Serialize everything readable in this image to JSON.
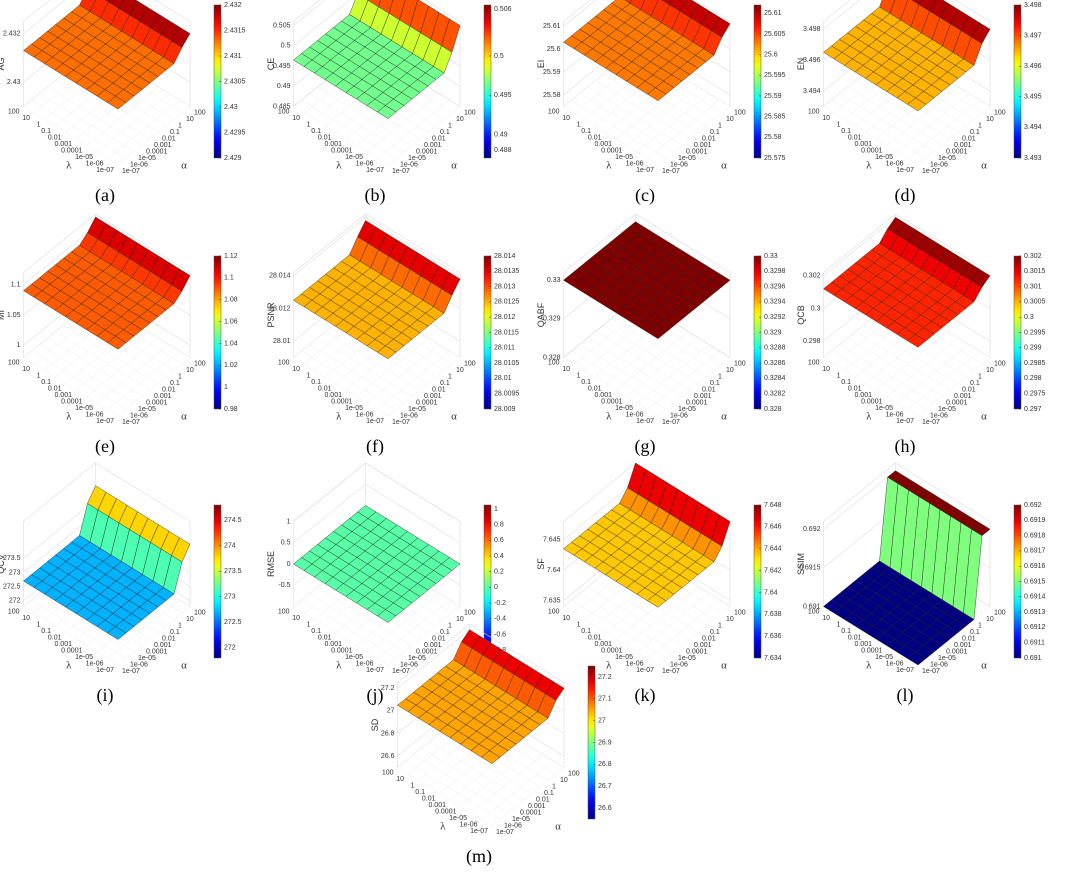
{
  "axes": {
    "lambda_label": "λ",
    "alpha_label": "α",
    "ticks": [
      "100",
      "10",
      "1",
      "0.1",
      "0.01",
      "0.001",
      "0.0001",
      "1e-05",
      "1e-06",
      "1e-07"
    ]
  },
  "colormap": "jet",
  "chart_data": [
    {
      "type": "surface",
      "panel_label": "(a)",
      "zlabel": "AG",
      "zlim": [
        2.429,
        2.4325
      ],
      "zticks": [
        2.43,
        2.432
      ],
      "clim": [
        2.429,
        2.432
      ],
      "cticks": [
        2.429,
        2.4295,
        2.43,
        2.4305,
        2.431,
        2.4315,
        2.432
      ],
      "values": [
        2.4313,
        2.4313,
        2.4313,
        2.4313,
        2.4313,
        2.4313,
        2.4313,
        2.4313,
        2.4317,
        2.432
      ]
    },
    {
      "type": "surface",
      "panel_label": "(b)",
      "zlabel": "CE",
      "zlim": [
        0.485,
        0.506
      ],
      "zticks": [
        0.485,
        0.49,
        0.495,
        0.5,
        0.505
      ],
      "clim": [
        0.487,
        0.5065
      ],
      "cticks": [
        0.488,
        0.49,
        0.495,
        0.5,
        0.506
      ],
      "values": [
        0.4965,
        0.4965,
        0.4965,
        0.4965,
        0.4965,
        0.4965,
        0.4965,
        0.4965,
        0.5,
        0.505
      ]
    },
    {
      "type": "surface",
      "panel_label": "(c)",
      "zlabel": "EI",
      "zlim": [
        25.575,
        25.612
      ],
      "zticks": [
        25.58,
        25.59,
        25.6,
        25.61
      ],
      "clim": [
        25.575,
        25.612
      ],
      "cticks": [
        25.575,
        25.58,
        25.585,
        25.59,
        25.595,
        25.6,
        25.605,
        25.61
      ],
      "values": [
        25.603,
        25.603,
        25.603,
        25.603,
        25.603,
        25.603,
        25.603,
        25.603,
        25.608,
        25.611
      ]
    },
    {
      "type": "surface",
      "panel_label": "(d)",
      "zlabel": "EN",
      "zlim": [
        3.493,
        3.4985
      ],
      "zticks": [
        3.494,
        3.496,
        3.498
      ],
      "clim": [
        3.493,
        3.498
      ],
      "cticks": [
        3.493,
        3.494,
        3.495,
        3.496,
        3.497,
        3.498
      ],
      "values": [
        3.4965,
        3.4965,
        3.4965,
        3.4965,
        3.4965,
        3.4965,
        3.4965,
        3.4965,
        3.4975,
        3.498
      ]
    },
    {
      "type": "surface",
      "panel_label": "(e)",
      "zlabel": "MI",
      "zlim": [
        0.98,
        1.12
      ],
      "zticks": [
        1,
        1.05,
        1.1
      ],
      "clim": [
        0.98,
        1.12
      ],
      "cticks": [
        0.98,
        1,
        1.02,
        1.04,
        1.06,
        1.08,
        1.1,
        1.12
      ],
      "values": [
        1.09,
        1.09,
        1.09,
        1.09,
        1.09,
        1.09,
        1.09,
        1.09,
        1.1,
        1.115
      ]
    },
    {
      "type": "surface",
      "panel_label": "(f)",
      "zlabel": "PSNR",
      "zlim": [
        28.009,
        28.0142
      ],
      "zticks": [
        28.01,
        28.012,
        28.014
      ],
      "clim": [
        28.009,
        28.014
      ],
      "cticks": [
        28.009,
        28.0095,
        28.01,
        28.0105,
        28.011,
        28.0115,
        28.012,
        28.0125,
        28.013,
        28.0135,
        28.014
      ],
      "values": [
        28.0125,
        28.0125,
        28.0125,
        28.0125,
        28.0125,
        28.0125,
        28.0125,
        28.0125,
        28.0132,
        28.0138
      ]
    },
    {
      "type": "surface",
      "panel_label": "(g)",
      "zlabel": "QABF",
      "zlim": [
        0.328,
        0.3302
      ],
      "zticks": [
        0.328,
        0.329,
        0.33
      ],
      "clim": [
        0.328,
        0.33
      ],
      "cticks": [
        0.328,
        0.3282,
        0.3284,
        0.3286,
        0.3288,
        0.329,
        0.3292,
        0.3294,
        0.3296,
        0.3298,
        0.33
      ],
      "values": [
        0.33,
        0.33,
        0.33,
        0.33,
        0.33,
        0.33,
        0.33,
        0.33,
        0.33,
        0.33
      ]
    },
    {
      "type": "surface",
      "panel_label": "(h)",
      "zlabel": "QCB",
      "zlim": [
        0.297,
        0.3022
      ],
      "zticks": [
        0.298,
        0.3,
        0.302
      ],
      "clim": [
        0.297,
        0.302
      ],
      "cticks": [
        0.297,
        0.2975,
        0.298,
        0.2985,
        0.299,
        0.2995,
        0.3,
        0.3005,
        0.301,
        0.3015,
        0.302
      ],
      "values": [
        0.3012,
        0.3012,
        0.3012,
        0.3012,
        0.3012,
        0.3012,
        0.3012,
        0.3012,
        0.3017,
        0.302
      ]
    },
    {
      "type": "surface",
      "panel_label": "(i)",
      "zlabel": "QCV",
      "zlim": [
        271.8,
        274.8
      ],
      "zticks": [
        272,
        272.5,
        273,
        273.5
      ],
      "clim": [
        271.8,
        274.8
      ],
      "cticks": [
        272,
        272.5,
        273,
        273.5,
        274,
        274.5
      ],
      "values": [
        272.7,
        272.7,
        272.7,
        272.7,
        272.7,
        272.7,
        272.7,
        272.7,
        273.6,
        274
      ]
    },
    {
      "type": "surface",
      "panel_label": "(j)",
      "zlabel": "RMSE",
      "zlim": [
        -1,
        1
      ],
      "zticks": [
        -0.5,
        0,
        0.5,
        1
      ],
      "clim": [
        -0.9,
        1.05
      ],
      "cticks": [
        -0.8,
        -0.6,
        -0.4,
        -0.2,
        0,
        0.2,
        0.4,
        0.6,
        0.8,
        1
      ],
      "values": [
        0,
        0,
        0,
        0,
        0,
        0,
        0,
        0,
        0,
        0
      ]
    },
    {
      "type": "surface",
      "panel_label": "(k)",
      "zlabel": "SF",
      "zlim": [
        7.634,
        7.648
      ],
      "zticks": [
        7.635,
        7.64,
        7.645
      ],
      "clim": [
        7.634,
        7.648
      ],
      "cticks": [
        7.634,
        7.636,
        7.638,
        7.64,
        7.642,
        7.644,
        7.646,
        7.648
      ],
      "values": [
        7.6435,
        7.6435,
        7.6435,
        7.6435,
        7.6435,
        7.6435,
        7.6435,
        7.6435,
        7.645,
        7.648
      ]
    },
    {
      "type": "surface",
      "panel_label": "(l)",
      "zlabel": "SSIM",
      "zlim": [
        0.691,
        0.6921
      ],
      "zticks": [
        0.691,
        0.6915,
        0.692
      ],
      "clim": [
        0.691,
        0.692
      ],
      "cticks": [
        0.691,
        0.6911,
        0.6912,
        0.6913,
        0.6914,
        0.6915,
        0.6916,
        0.6917,
        0.6918,
        0.6919,
        0.692
      ],
      "values": [
        0.691,
        0.691,
        0.691,
        0.691,
        0.691,
        0.691,
        0.691,
        0.691,
        0.692,
        0.692
      ]
    },
    {
      "type": "surface",
      "panel_label": "(m)",
      "zlabel": "SD",
      "zlim": [
        26.5,
        27.25
      ],
      "zticks": [
        26.6,
        26.8,
        27,
        27.2
      ],
      "clim": [
        26.55,
        27.25
      ],
      "cticks": [
        26.6,
        26.7,
        26.8,
        26.9,
        27,
        27.1,
        27.2
      ],
      "values": [
        27.05,
        27.05,
        27.05,
        27.05,
        27.05,
        27.05,
        27.05,
        27.05,
        27.15,
        27.2
      ]
    }
  ]
}
